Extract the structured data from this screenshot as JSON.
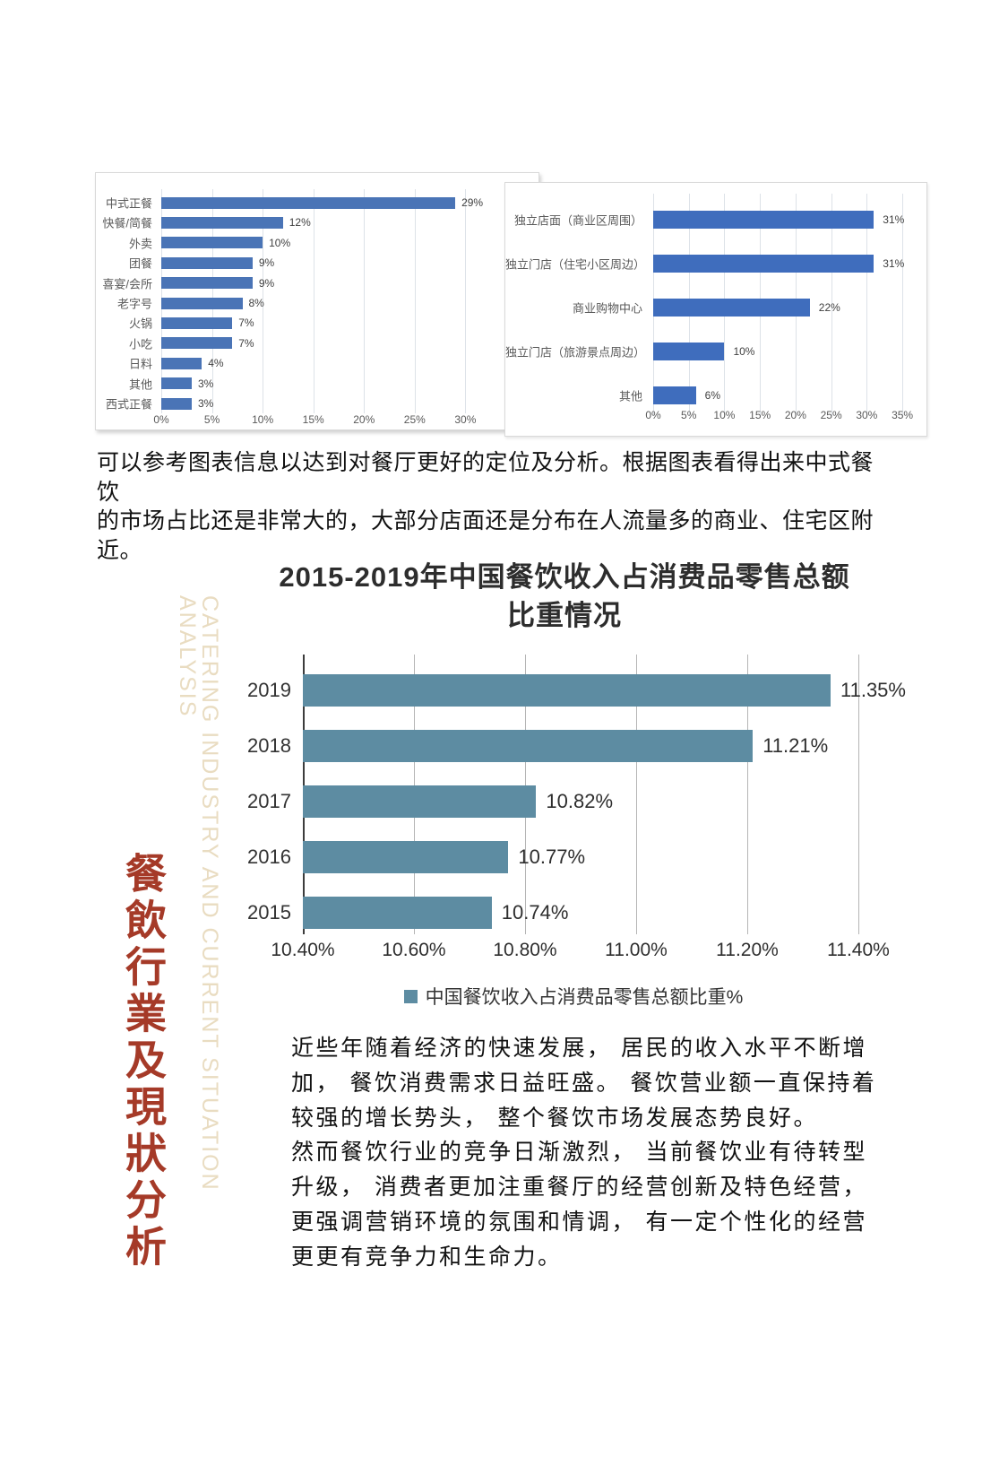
{
  "paragraph_top": {
    "lines": [
      "可以参考图表信息以达到对餐厅更好的定位及分析。根据图表看得出来中式餐饮",
      "的市场占比还是非常大的，大部分店面还是分布在人流量多的商业、住宅区附近。"
    ]
  },
  "paragraph_bottom": {
    "lines": [
      "近些年随着经济的快速发展， 居民的收入水平不断增",
      "加， 餐饮消费需求日益旺盛。 餐饮营业额一直保持着",
      "较强的增长势头， 整个餐饮市场发展态势良好。",
      "然而餐饮行业的竞争日渐激烈， 当前餐饮业有待转型",
      "升级， 消费者更加注重餐厅的经营创新及特色经营，",
      "更强调营销环境的氛围和情调， 有一定个性化的经营",
      "更更有竞争力和生命力。"
    ]
  },
  "sidebar": {
    "chinese": "餐飲行業及現狀分析",
    "chinese_color": "#a53a28",
    "english": "CATERING INDUSTRY AND CURRENT SITUATION ANALYSIS",
    "english_color": "#e9dcc1"
  },
  "chart_data": [
    {
      "id": "chart1",
      "type": "bar",
      "orientation": "horizontal",
      "categories": [
        "中式正餐",
        "快餐/简餐",
        "外卖",
        "团餐",
        "喜宴/会所",
        "老字号",
        "火锅",
        "小吃",
        "日料",
        "其他",
        "西式正餐"
      ],
      "values": [
        29,
        12,
        10,
        9,
        9,
        8,
        7,
        7,
        4,
        3,
        3
      ],
      "value_labels": [
        "29%",
        "12%",
        "10%",
        "9%",
        "9%",
        "8%",
        "7%",
        "7%",
        "4%",
        "3%",
        "3%"
      ],
      "xlim": [
        0,
        32
      ],
      "tick_values": [
        0,
        5,
        10,
        15,
        20,
        25,
        30
      ],
      "tick_labels": [
        "0%",
        "5%",
        "10%",
        "15%",
        "20%",
        "25%",
        "30%"
      ],
      "bar_color": "#4a74b6",
      "grid": true,
      "legend_position": "none"
    },
    {
      "id": "chart2",
      "type": "bar",
      "orientation": "horizontal",
      "categories": [
        "独立店面（商业区周围）",
        "独立门店（住宅小区周边）",
        "商业购物中心",
        "独立门店（旅游景点周边）",
        "其他"
      ],
      "values": [
        31,
        31,
        22,
        10,
        6
      ],
      "value_labels": [
        "31%",
        "31%",
        "22%",
        "10%",
        "6%"
      ],
      "xlim": [
        0,
        36.5
      ],
      "tick_values": [
        0,
        5,
        10,
        15,
        20,
        25,
        30,
        35
      ],
      "tick_labels": [
        "0%",
        "5%",
        "10%",
        "15%",
        "20%",
        "25%",
        "30%",
        "35%"
      ],
      "bar_color": "#3f6dbd",
      "grid": true,
      "legend_position": "none"
    },
    {
      "id": "chart3",
      "type": "bar",
      "orientation": "horizontal",
      "title": "2015-2019年中国餐饮收入占消费品零售总额比重情况",
      "title_lines": [
        "2015-2019年中国餐饮收入占消费品零售总额",
        "比重情况"
      ],
      "categories": [
        "2019",
        "2018",
        "2017",
        "2016",
        "2015"
      ],
      "values": [
        11.35,
        11.21,
        10.82,
        10.77,
        10.74
      ],
      "value_labels": [
        "11.35%",
        "11.21%",
        "10.82%",
        "10.77%",
        "10.74%"
      ],
      "xlim": [
        10.4,
        11.4
      ],
      "tick_values": [
        10.4,
        10.6,
        10.8,
        11.0,
        11.2,
        11.4
      ],
      "tick_labels": [
        "10.40%",
        "10.60%",
        "10.80%",
        "11.00%",
        "11.20%",
        "11.40%"
      ],
      "bar_color": "#5d8ca2",
      "grid": true,
      "legend": "中国餐饮收入占消费品零售总额比重%",
      "legend_position": "bottom"
    }
  ]
}
